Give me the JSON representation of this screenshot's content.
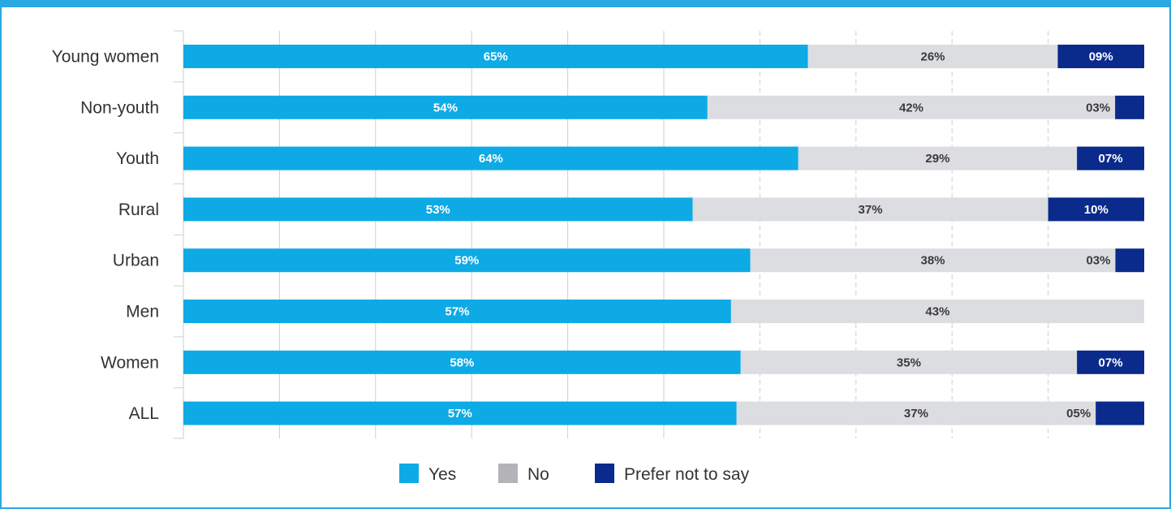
{
  "chart_data": {
    "type": "bar",
    "orientation": "horizontal",
    "stacked": true,
    "categories": [
      "Young women",
      "Non-youth",
      "Youth",
      "Rural",
      "Urban",
      "Men",
      "Women",
      "ALL"
    ],
    "series": [
      {
        "name": "Yes",
        "color": "#0eaae6",
        "label_color": "#ffffff",
        "values": [
          65,
          54,
          64,
          53,
          59,
          57,
          58,
          57
        ],
        "labels": [
          "65%",
          "54%",
          "64%",
          "53%",
          "59%",
          "57%",
          "58%",
          "57%"
        ]
      },
      {
        "name": "No",
        "color": "#dcdde0",
        "label_color": "#3a3a3a",
        "values": [
          26,
          42,
          29,
          37,
          38,
          43,
          35,
          37
        ],
        "labels": [
          "26%",
          "42%",
          "29%",
          "37%",
          "38%",
          "43%",
          "35%",
          "37%"
        ]
      },
      {
        "name": "Prefer not to say",
        "color": "#0a2a8c",
        "label_color": "#ffffff",
        "values": [
          9,
          3,
          7,
          10,
          3,
          0,
          7,
          5
        ],
        "labels": [
          "09%",
          "03%",
          "07%",
          "10%",
          "03%",
          "",
          "07%",
          "05%"
        ]
      }
    ],
    "xlim": [
      0,
      100
    ],
    "grid": true,
    "legend": {
      "position": "bottom"
    },
    "legend_swatch_color_no": "#b4b4b8"
  }
}
